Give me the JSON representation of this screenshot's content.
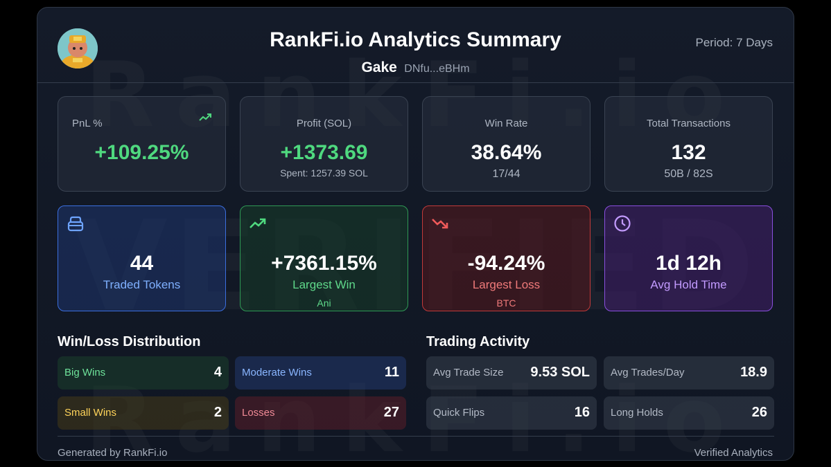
{
  "watermark": {
    "line1": "RankFi.io",
    "line2": "VERIFIED",
    "line3": "RankFi.io"
  },
  "header": {
    "title": "RankFi.io Analytics Summary",
    "username": "Gake",
    "address": "DNfu...eBHm",
    "period": "Period: 7 Days"
  },
  "stats": {
    "pnl": {
      "label": "PnL %",
      "value": "+109.25%"
    },
    "profit": {
      "label": "Profit (SOL)",
      "value": "+1373.69",
      "sub": "Spent: 1257.39 SOL"
    },
    "winrate": {
      "label": "Win Rate",
      "value": "38.64%",
      "sub": "17/44"
    },
    "transactions": {
      "label": "Total Transactions",
      "value": "132",
      "sub": "50B / 82S"
    }
  },
  "highlights": {
    "tokens": {
      "value": "44",
      "label": "Traded Tokens"
    },
    "largest_win": {
      "value": "+7361.15%",
      "label": "Largest Win",
      "sub": "Ani"
    },
    "largest_loss": {
      "value": "-94.24%",
      "label": "Largest Loss",
      "sub": "BTC"
    },
    "hold_time": {
      "value": "1d 12h",
      "label": "Avg Hold Time"
    }
  },
  "distribution": {
    "title": "Win/Loss Distribution",
    "big_wins": {
      "label": "Big Wins",
      "value": "4"
    },
    "moderate_wins": {
      "label": "Moderate Wins",
      "value": "11"
    },
    "small_wins": {
      "label": "Small Wins",
      "value": "2"
    },
    "losses": {
      "label": "Losses",
      "value": "27"
    }
  },
  "activity": {
    "title": "Trading Activity",
    "avg_trade_size": {
      "label": "Avg Trade Size",
      "value": "9.53 SOL"
    },
    "avg_trades_day": {
      "label": "Avg Trades/Day",
      "value": "18.9"
    },
    "quick_flips": {
      "label": "Quick Flips",
      "value": "16"
    },
    "long_holds": {
      "label": "Long Holds",
      "value": "26"
    }
  },
  "footer": {
    "left": "Generated by RankFi.io",
    "right": "Verified Analytics"
  },
  "colors": {
    "positive": "#4fd97f",
    "negative": "#f07a7a",
    "accent_blue": "#3b6fe0",
    "accent_purple": "#8b4fe0"
  },
  "icons": {
    "pnl_trend": "trending-up-icon",
    "tokens": "stack-icon",
    "win": "trending-up-icon",
    "loss": "trending-down-icon",
    "hold": "clock-icon"
  }
}
